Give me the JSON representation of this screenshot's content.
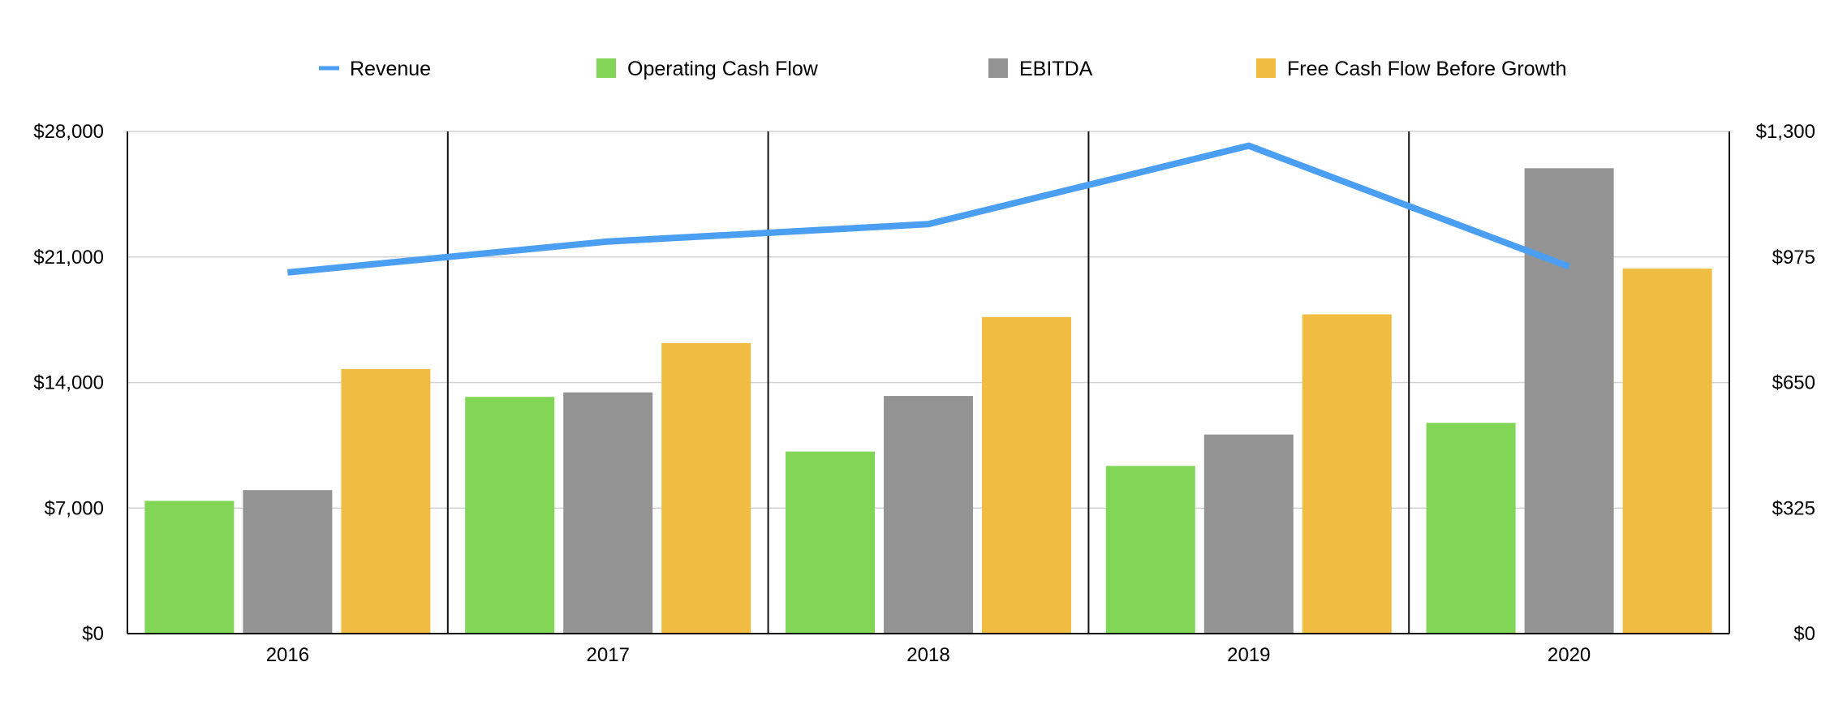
{
  "chart_data": {
    "type": "bar",
    "title": "",
    "xlabel": "",
    "ylabel": "",
    "y2label": "",
    "categories": [
      "2016",
      "2017",
      "2018",
      "2019",
      "2020"
    ],
    "series": [
      {
        "name": "Operating Cash Flow",
        "kind": "bar",
        "axis": "left",
        "color": "#82d655",
        "values": [
          7400,
          13200,
          10150,
          9350,
          11750
        ]
      },
      {
        "name": "EBITDA",
        "kind": "bar",
        "axis": "left",
        "color": "#939393",
        "values": [
          8000,
          13450,
          13250,
          11100,
          25950
        ]
      },
      {
        "name": "Free Cash Flow Before Growth",
        "kind": "bar",
        "axis": "left",
        "color": "#f0bc41",
        "values": [
          14750,
          16200,
          17650,
          17800,
          20350
        ]
      },
      {
        "name": "Revenue",
        "kind": "line",
        "axis": "right",
        "color": "#4b9ff2",
        "values": [
          935,
          1015,
          1060,
          1263,
          950
        ]
      }
    ],
    "ylim": [
      0,
      28000
    ],
    "y_ticks": [
      0,
      7000,
      14000,
      21000,
      28000
    ],
    "y_tick_labels": [
      "$0",
      "$7,000",
      "$14,000",
      "$21,000",
      "$28,000"
    ],
    "y2lim": [
      0,
      1300
    ],
    "y2_ticks": [
      0,
      325,
      650,
      975,
      1300
    ],
    "y2_tick_labels": [
      "$0",
      "$325",
      "$650",
      "$975",
      "$1,300"
    ],
    "legend": {
      "position": "top",
      "items": [
        {
          "name": "Revenue",
          "marker": "line",
          "color": "#4b9ff2"
        },
        {
          "name": "Operating Cash Flow",
          "marker": "square",
          "color": "#82d655"
        },
        {
          "name": "EBITDA",
          "marker": "square",
          "color": "#939393"
        },
        {
          "name": "Free Cash Flow Before Growth",
          "marker": "square",
          "color": "#f0bc41"
        }
      ]
    },
    "grid": true
  }
}
